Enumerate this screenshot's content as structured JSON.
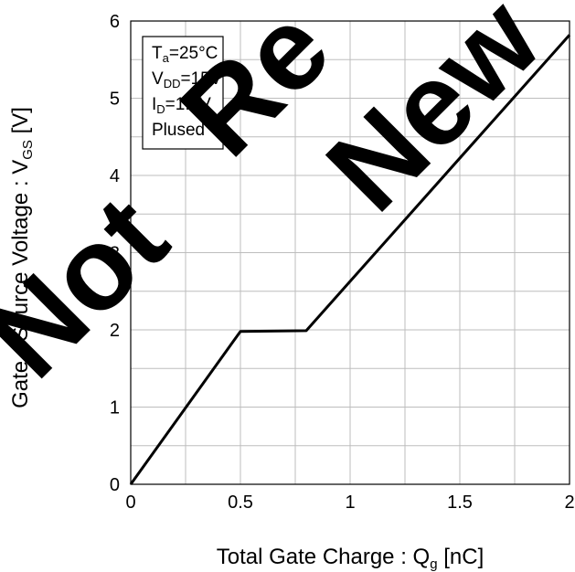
{
  "chart_data": {
    "type": "line",
    "xlabel": "Total Gate Charge : Q",
    "xlabel_sub": "g",
    "xlabel_unit": " [nC]",
    "ylabel": "Gate - Source Voltage : V",
    "ylabel_sub": "GS",
    "ylabel_unit": " [V]",
    "xlim": [
      0,
      2
    ],
    "ylim": [
      0,
      6
    ],
    "xticks": [
      0,
      0.5,
      1,
      1.5,
      2
    ],
    "xtick_labels": [
      "0",
      "0.5",
      "1",
      "1.5",
      "2"
    ],
    "yticks": [
      0,
      1,
      2,
      3,
      4,
      5,
      6
    ],
    "ytick_labels": [
      "0",
      "1",
      "2",
      "3",
      "4",
      "5",
      "6"
    ],
    "grid": true,
    "series": [
      {
        "x": [
          0,
          0.5,
          0.8,
          2.0
        ],
        "y": [
          0,
          1.98,
          1.99,
          5.82
        ]
      }
    ],
    "annotation": {
      "ta_main": "T",
      "ta_sub": "a",
      "ta_rest": "=25°C",
      "vdd_main": "V",
      "vdd_sub": "DD",
      "vdd_rest": "=15V",
      "id_main": "I",
      "id_sub": "D",
      "id_rest": "=1.5V",
      "pulse": "Plused"
    },
    "watermark": [
      "Not",
      "Re",
      "New"
    ]
  }
}
